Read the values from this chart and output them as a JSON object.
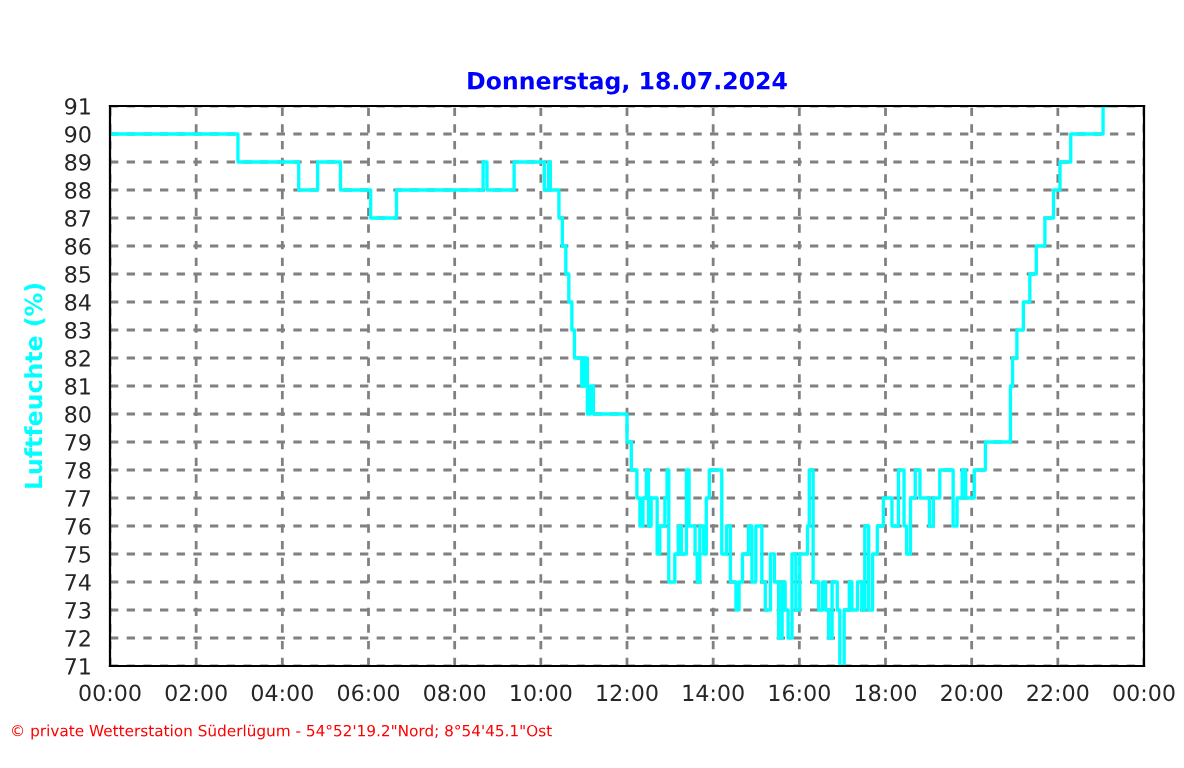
{
  "chart_data": {
    "type": "step",
    "title": "Donnerstag, 18.07.2024",
    "ylabel": "Luftfeuchte (%)",
    "x": [
      0,
      2.97,
      4.38,
      4.82,
      5.35,
      6.05,
      6.65,
      8.66,
      8.75,
      9.38,
      10.08,
      10.18,
      10.22,
      10.42,
      10.5,
      10.58,
      10.65,
      10.72,
      10.78,
      10.95,
      11.02,
      11.08,
      11.15,
      11.22,
      11.38,
      12.0,
      12.1,
      12.23,
      12.3,
      12.37,
      12.45,
      12.5,
      12.56,
      12.7,
      12.76,
      12.88,
      12.93,
      12.97,
      13.11,
      13.19,
      13.26,
      13.38,
      13.44,
      13.58,
      13.63,
      13.69,
      13.78,
      13.84,
      13.91,
      14.12,
      14.2,
      14.31,
      14.4,
      14.53,
      14.6,
      14.68,
      14.82,
      14.9,
      14.99,
      15.13,
      15.21,
      15.33,
      15.42,
      15.52,
      15.6,
      15.67,
      15.74,
      15.83,
      15.92,
      16.01,
      16.19,
      16.23,
      16.32,
      16.45,
      16.54,
      16.61,
      16.68,
      16.76,
      16.88,
      16.94,
      17.04,
      17.16,
      17.22,
      17.35,
      17.45,
      17.52,
      17.61,
      17.7,
      17.81,
      17.95,
      18.15,
      18.3,
      18.43,
      18.49,
      18.58,
      18.69,
      18.8,
      19.02,
      19.11,
      19.26,
      19.57,
      19.66,
      19.78,
      19.86,
      20.06,
      20.23,
      20.32,
      20.9,
      20.95,
      21.05,
      21.2,
      21.35,
      21.5,
      21.7,
      21.9,
      22.05,
      22.3,
      23.05,
      23.2
    ],
    "series": [
      {
        "color": "#00ffff",
        "values": [
          90,
          89,
          88,
          89,
          88,
          87,
          88,
          89,
          88,
          89,
          88,
          89,
          88,
          87,
          86,
          85,
          84,
          83,
          82,
          81,
          82,
          80,
          81,
          80,
          80,
          79,
          78,
          77,
          76,
          77,
          78,
          76,
          77,
          75,
          76,
          77,
          78,
          74,
          75,
          76,
          75,
          78,
          76,
          75,
          74,
          76,
          75,
          77,
          78,
          78,
          75,
          76,
          74,
          73,
          74,
          75,
          76,
          74,
          76,
          74,
          73,
          75,
          74,
          72,
          74,
          73,
          72,
          75,
          73,
          75,
          76,
          78,
          74,
          73,
          74,
          73,
          72,
          74,
          73,
          71,
          73,
          74,
          73,
          74,
          73,
          76,
          73,
          75,
          76,
          77,
          76,
          78,
          76,
          75,
          77,
          78,
          77,
          76,
          77,
          78,
          76,
          77,
          78,
          77,
          78,
          78,
          79,
          81,
          82,
          83,
          84,
          85,
          86,
          87,
          88,
          89,
          90,
          91,
          91
        ]
      }
    ],
    "xlim": [
      0,
      24
    ],
    "xticks": [
      {
        "value": 0,
        "label": "00:00"
      },
      {
        "value": 2,
        "label": "02:00"
      },
      {
        "value": 4,
        "label": "04:00"
      },
      {
        "value": 6,
        "label": "06:00"
      },
      {
        "value": 8,
        "label": "08:00"
      },
      {
        "value": 10,
        "label": "10:00"
      },
      {
        "value": 12,
        "label": "12:00"
      },
      {
        "value": 14,
        "label": "14:00"
      },
      {
        "value": 16,
        "label": "16:00"
      },
      {
        "value": 18,
        "label": "18:00"
      },
      {
        "value": 20,
        "label": "20:00"
      },
      {
        "value": 22,
        "label": "22:00"
      },
      {
        "value": 24,
        "label": "00:00"
      }
    ],
    "ylim": [
      71,
      91
    ],
    "yticks": [
      71,
      72,
      73,
      74,
      75,
      76,
      77,
      78,
      79,
      80,
      81,
      82,
      83,
      84,
      85,
      86,
      87,
      88,
      89,
      90,
      91
    ],
    "grid": true,
    "legend": false,
    "line_style": "solid",
    "annotations": [
      "© private Wetterstation Süderlügum - 54°52'19.2\"Nord; 8°54'45.1\"Ost"
    ]
  }
}
